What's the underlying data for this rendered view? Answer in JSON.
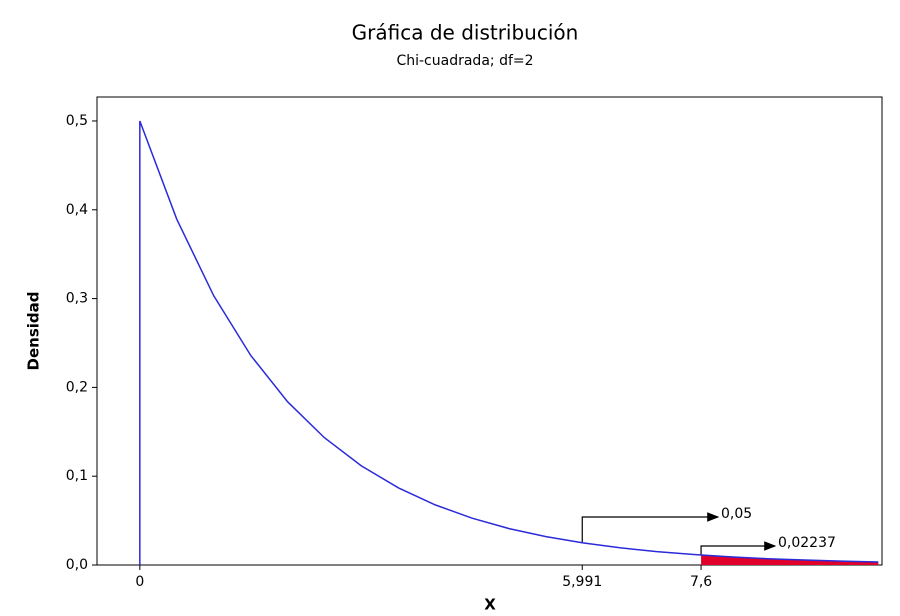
{
  "chart_data": {
    "type": "line",
    "title": "Gráfica de distribución",
    "subtitle": "Chi-cuadrada; df=2",
    "xlabel": "X",
    "ylabel": "Densidad",
    "x": [
      0,
      0,
      0.5,
      1,
      1.5,
      2,
      2.5,
      3,
      3.5,
      4,
      4.5,
      5,
      5.5,
      6,
      6.5,
      7,
      7.5,
      8,
      8.5,
      9,
      9.5,
      10
    ],
    "series": [
      {
        "color": "#2b2bd9",
        "values": [
          0,
          0.5,
          0.3894,
          0.3033,
          0.2362,
          0.1839,
          0.1433,
          0.1116,
          0.0869,
          0.0677,
          0.0527,
          0.041,
          0.032,
          0.0249,
          0.0194,
          0.0151,
          0.0118,
          0.0092,
          0.0071,
          0.0056,
          0.0043,
          0.0034
        ]
      }
    ],
    "xlim": [
      -0.58,
      10.05
    ],
    "ylim": [
      0,
      0.527
    ],
    "xticks": [
      0,
      {
        "value": 5.991,
        "label": "5,991"
      },
      {
        "value": 7.6,
        "label": "7,6"
      }
    ],
    "yticks": [
      {
        "value": 0,
        "label": "0,0"
      },
      {
        "value": 0.1,
        "label": "0,1"
      },
      {
        "value": 0.2,
        "label": "0,2"
      },
      {
        "value": 0.3,
        "label": "0,3"
      },
      {
        "value": 0.4,
        "label": "0,4"
      },
      {
        "value": 0.5,
        "label": "0,5"
      }
    ],
    "areas": [
      {
        "x": 5.991,
        "value": 0.05,
        "label": "0,05",
        "shaded": false
      },
      {
        "x": 7.6,
        "value": 0.02237,
        "label": "0,02237",
        "shaded": true,
        "color": "#e0002a"
      }
    ]
  }
}
